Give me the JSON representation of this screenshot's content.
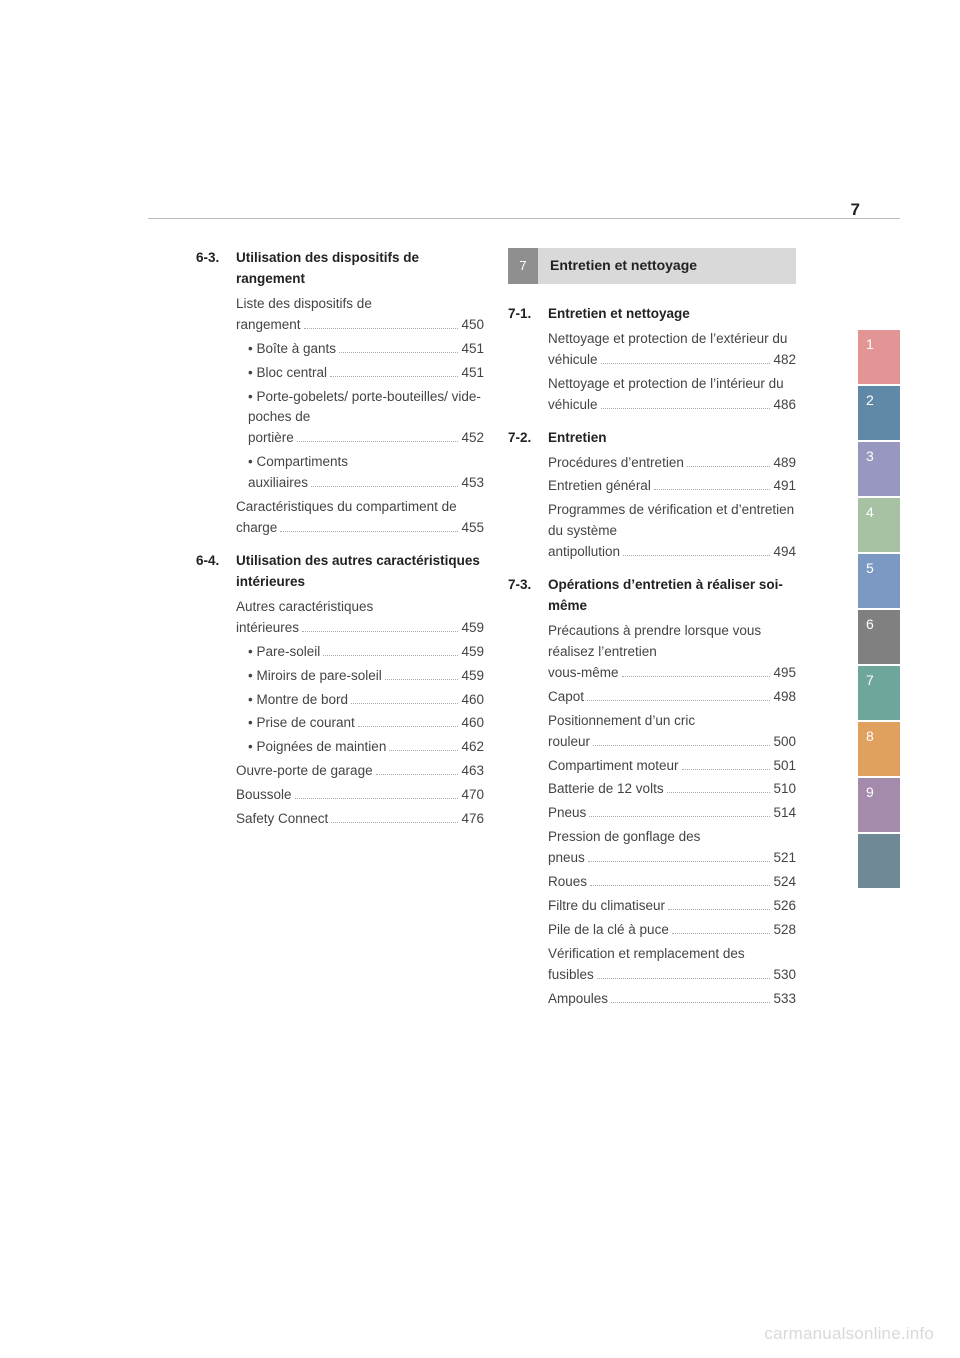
{
  "page_number": "7",
  "watermark": "carmanualsonline.info",
  "tabs": [
    {
      "label": "1",
      "color": "#e39494"
    },
    {
      "label": "2",
      "color": "#5f89a6"
    },
    {
      "label": "3",
      "color": "#9797c0"
    },
    {
      "label": "4",
      "color": "#a6c2a3"
    },
    {
      "label": "5",
      "color": "#7b99c2"
    },
    {
      "label": "6",
      "color": "#808080"
    },
    {
      "label": "7",
      "color": "#6fa69c"
    },
    {
      "label": "8",
      "color": "#e0a05e"
    },
    {
      "label": "9",
      "color": "#a58bab"
    },
    {
      "label": "",
      "color": "#6f8a96"
    }
  ],
  "left": {
    "s63": {
      "num": "6-3.",
      "title": "Utilisation des dispositifs de rangement",
      "items": [
        {
          "label": "Liste des dispositifs de rangement",
          "page": "450",
          "indent": 1,
          "multi": true
        },
        {
          "label": "Boîte à gants",
          "page": "451",
          "indent": 2,
          "bullet": true
        },
        {
          "label": "Bloc central",
          "page": "451",
          "indent": 2,
          "bullet": true
        },
        {
          "label": "Porte-gobelets/ porte-bouteilles/ vide-poches de portière",
          "page": "452",
          "indent": 2,
          "bullet": true,
          "multi": true
        },
        {
          "label": "Compartiments auxiliaires",
          "page": "453",
          "indent": 2,
          "bullet": true,
          "multi": true
        },
        {
          "label": "Caractéristiques du compartiment de charge",
          "page": "455",
          "indent": 1,
          "multi": true
        }
      ]
    },
    "s64": {
      "num": "6-4.",
      "title": "Utilisation des autres caractéristiques intérieures",
      "items": [
        {
          "label": "Autres caractéristiques intérieures",
          "page": "459",
          "indent": 1,
          "multi": true
        },
        {
          "label": "Pare-soleil",
          "page": "459",
          "indent": 2,
          "bullet": true
        },
        {
          "label": "Miroirs de pare-soleil",
          "page": "459",
          "indent": 2,
          "bullet": true
        },
        {
          "label": "Montre de bord",
          "page": "460",
          "indent": 2,
          "bullet": true
        },
        {
          "label": "Prise de courant",
          "page": "460",
          "indent": 2,
          "bullet": true
        },
        {
          "label": "Poignées de maintien",
          "page": "462",
          "indent": 2,
          "bullet": true
        },
        {
          "label": "Ouvre-porte de garage",
          "page": "463",
          "indent": 1
        },
        {
          "label": "Boussole",
          "page": "470",
          "indent": 1
        },
        {
          "label": "Safety Connect",
          "page": "476",
          "indent": 1
        }
      ]
    }
  },
  "right": {
    "chapter": {
      "num": "7",
      "title": "Entretien et nettoyage"
    },
    "s71": {
      "num": "7-1.",
      "title": "Entretien et nettoyage",
      "items": [
        {
          "label": "Nettoyage et protection de l’extérieur du véhicule",
          "page": "482",
          "indent": 1,
          "multi": true
        },
        {
          "label": "Nettoyage et protection de l’intérieur du véhicule",
          "page": "486",
          "indent": 1,
          "multi": true
        }
      ]
    },
    "s72": {
      "num": "7-2.",
      "title": "Entretien",
      "items": [
        {
          "label": "Procédures d’entretien",
          "page": "489",
          "indent": 1
        },
        {
          "label": "Entretien général",
          "page": "491",
          "indent": 1
        },
        {
          "label": "Programmes de vérification et d’entretien du système antipollution",
          "page": "494",
          "indent": 1,
          "multi": true
        }
      ]
    },
    "s73": {
      "num": "7-3.",
      "title": "Opérations d’entretien à réaliser soi-même",
      "items": [
        {
          "label": "Précautions à prendre lorsque vous réalisez l’entretien vous-même",
          "page": "495",
          "indent": 1,
          "multi": true
        },
        {
          "label": "Capot",
          "page": "498",
          "indent": 1
        },
        {
          "label": "Positionnement d’un cric rouleur",
          "page": "500",
          "indent": 1,
          "multi": true
        },
        {
          "label": "Compartiment moteur",
          "page": "501",
          "indent": 1
        },
        {
          "label": "Batterie de 12 volts",
          "page": "510",
          "indent": 1
        },
        {
          "label": "Pneus",
          "page": "514",
          "indent": 1
        },
        {
          "label": "Pression de gonflage des pneus",
          "page": "521",
          "indent": 1,
          "multi": true
        },
        {
          "label": "Roues",
          "page": "524",
          "indent": 1
        },
        {
          "label": "Filtre du climatiseur",
          "page": "526",
          "indent": 1
        },
        {
          "label": "Pile de la clé à puce",
          "page": "528",
          "indent": 1
        },
        {
          "label": "Vérification et remplacement des fusibles",
          "page": "530",
          "indent": 1,
          "multi": true
        },
        {
          "label": "Ampoules",
          "page": "533",
          "indent": 1
        }
      ]
    }
  }
}
